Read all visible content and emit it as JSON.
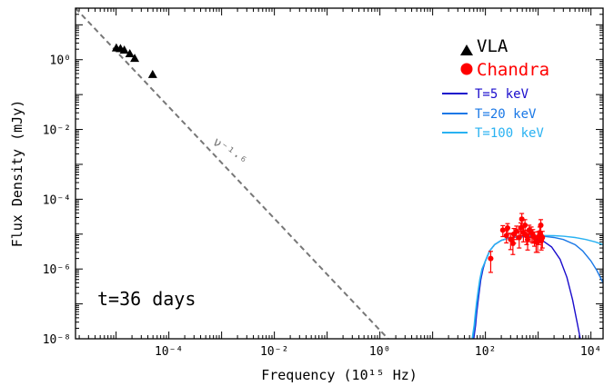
{
  "chart_data": {
    "type": "scatter",
    "xlabel": "Frequency (10¹⁵ Hz)",
    "ylabel": "Flux Density (mJy)",
    "xscale": "log",
    "yscale": "log",
    "xlim": [
      1.7e-06,
      17000
    ],
    "ylim": [
      1e-08,
      30
    ],
    "xtick_labels": [
      "10⁻⁴",
      "10⁻²",
      "10⁰",
      "10²",
      "10⁴"
    ],
    "xtick_values": [
      0.0001,
      0.01,
      1,
      100,
      10000
    ],
    "ytick_labels": [
      "10⁻⁸",
      "10⁻⁶",
      "10⁻⁴",
      "10⁻²",
      "10⁰"
    ],
    "ytick_values": [
      1e-08,
      1e-06,
      0.0001,
      0.01,
      1
    ],
    "annotation": "t=36 days",
    "powerlaw_label": "ν⁻¹·⁶",
    "powerlaw": {
      "index": -1.6,
      "ref_x": 1.7e-06,
      "ref_y": 30,
      "x_end": 2.5,
      "color": "#777777",
      "dash": true
    },
    "legend": {
      "position": "top-right",
      "entries": [
        {
          "label": "VLA",
          "marker": "triangle",
          "color": "#000000"
        },
        {
          "label": "Chandra",
          "marker": "circle",
          "color": "#ff0000"
        },
        {
          "label": "T=5 keV",
          "line": true,
          "color": "#1a0ccc"
        },
        {
          "label": "T=20 keV",
          "line": true,
          "color": "#1a78e6"
        },
        {
          "label": "T=100 keV",
          "line": true,
          "color": "#29b2f2"
        }
      ]
    },
    "series": [
      {
        "name": "VLA",
        "marker": "triangle",
        "color": "#000000",
        "x": [
          1.01e-05,
          1.21e-05,
          1.43e-05,
          1.82e-05,
          2.25e-05,
          4.93e-05
        ],
        "y": [
          2.2,
          2.1,
          1.9,
          1.5,
          1.1,
          0.38
        ]
      },
      {
        "name": "Chandra",
        "marker": "circle",
        "color": "#ff0000",
        "x": [
          126,
          214,
          250,
          263,
          300,
          332,
          347,
          389,
          437,
          468,
          490,
          525,
          562,
          603,
          631,
          676,
          741,
          794,
          851,
          912,
          977,
          1023,
          1072,
          1122,
          1148,
          1202
        ],
        "y": [
          2e-06,
          1.3e-05,
          9.1e-06,
          1.5e-05,
          7.1e-06,
          5.4e-06,
          1e-05,
          1.2e-05,
          8e-06,
          1.5e-05,
          2.7e-05,
          1.1e-05,
          1.8e-05,
          9e-06,
          7e-06,
          1.3e-05,
          1.1e-05,
          9.5e-06,
          8e-06,
          6e-06,
          6e-06,
          8.5e-06,
          1.1e-05,
          1.8e-05,
          6.5e-06,
          8e-06
        ],
        "yerr": [
          1.2e-06,
          4.5e-06,
          3.5e-06,
          5e-06,
          3.5e-06,
          2.8e-06,
          4.5e-06,
          5e-06,
          4e-06,
          6e-06,
          1.2e-05,
          5e-06,
          8e-06,
          4e-06,
          3.5e-06,
          5e-06,
          5e-06,
          4e-06,
          3.5e-06,
          3e-06,
          3e-06,
          3.5e-06,
          5e-06,
          8e-06,
          3e-06,
          4e-06
        ],
        "xerr_frac": 0.1
      },
      {
        "name": "T=5 keV",
        "line": true,
        "color": "#1a0ccc",
        "x": [
          60,
          65,
          68,
          72,
          77,
          82,
          90,
          100,
          120,
          150,
          200,
          300,
          500,
          800,
          1200,
          1800,
          2600,
          3500,
          4500,
          5500,
          6200,
          7000
        ],
        "y": [
          1e-08,
          2.4e-08,
          5e-08,
          1.1e-07,
          2.5e-07,
          5e-07,
          1e-06,
          1.7e-06,
          3.3e-06,
          5e-06,
          6.6e-06,
          8e-06,
          8.5e-06,
          8e-06,
          6.6e-06,
          4.3e-06,
          1.9e-06,
          5.8e-07,
          1.3e-07,
          2.8e-08,
          1.1e-08,
          4e-09
        ]
      },
      {
        "name": "T=20 keV",
        "line": true,
        "color": "#1a78e6",
        "x": [
          58,
          63,
          66,
          70,
          75,
          80,
          88,
          100,
          120,
          150,
          200,
          300,
          500,
          800,
          1200,
          2000,
          3000,
          5000,
          7000,
          10000,
          13000,
          17000
        ],
        "y": [
          1e-08,
          2.4e-08,
          5e-08,
          1.1e-07,
          2.5e-07,
          5e-07,
          1e-06,
          1.7e-06,
          3.3e-06,
          5e-06,
          6.6e-06,
          8e-06,
          8.8e-06,
          9e-06,
          8.8e-06,
          8e-06,
          7e-06,
          5e-06,
          3.3e-06,
          1.7e-06,
          9e-07,
          4e-07
        ]
      },
      {
        "name": "T=100 keV",
        "line": true,
        "color": "#29b2f2",
        "x": [
          56,
          61,
          64,
          68,
          73,
          78,
          86,
          100,
          120,
          150,
          200,
          300,
          500,
          800,
          1200,
          2000,
          3000,
          5000,
          8000,
          12000,
          17000
        ],
        "y": [
          1e-08,
          2.4e-08,
          5e-08,
          1.1e-07,
          2.5e-07,
          5e-07,
          1e-06,
          1.7e-06,
          3.3e-06,
          5e-06,
          6.6e-06,
          8e-06,
          8.8e-06,
          9e-06,
          9.1e-06,
          9e-06,
          8.7e-06,
          8e-06,
          7e-06,
          6e-06,
          5e-06
        ]
      }
    ]
  }
}
